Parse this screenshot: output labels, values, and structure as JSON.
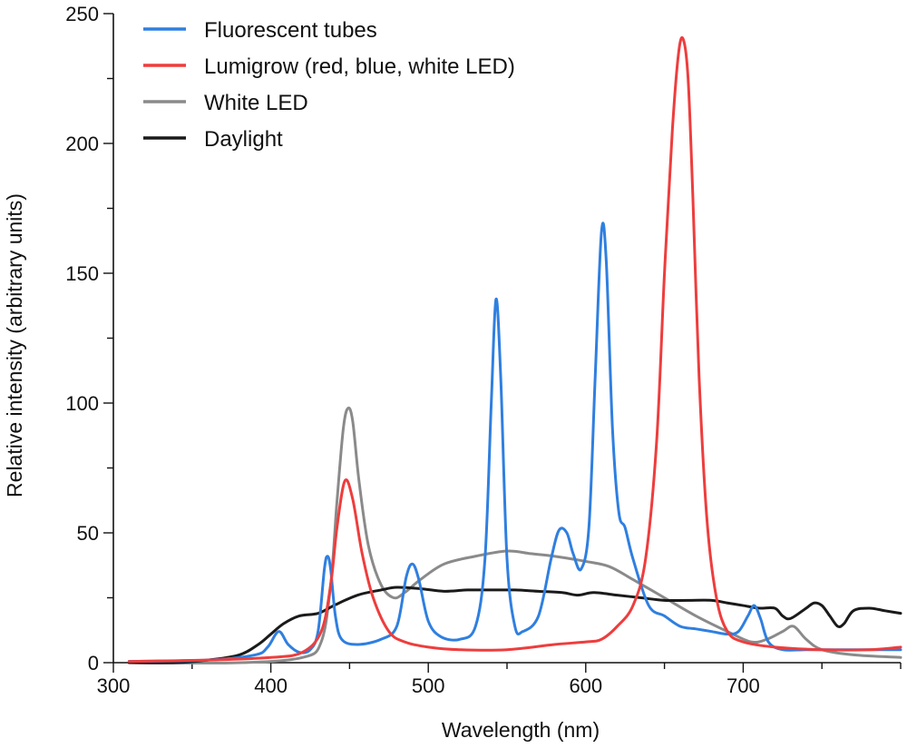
{
  "chart_data": {
    "type": "line",
    "title": "",
    "xlabel": "Wavelength (nm)",
    "ylabel": "Relative intensity (arbitrary units)",
    "xlim": [
      300,
      800
    ],
    "ylim": [
      0,
      250
    ],
    "xticks": [
      300,
      400,
      500,
      600,
      700
    ],
    "yticks": [
      0,
      50,
      100,
      150,
      200,
      250
    ],
    "grid": false,
    "legend_position": "top-left",
    "series": [
      {
        "name": "Fluorescent tubes",
        "color": "#2f7fe0",
        "points": [
          [
            310,
            0.5
          ],
          [
            360,
            1
          ],
          [
            390,
            3
          ],
          [
            398,
            6
          ],
          [
            405,
            12
          ],
          [
            411,
            7
          ],
          [
            418,
            4
          ],
          [
            425,
            5
          ],
          [
            430,
            12
          ],
          [
            434,
            36
          ],
          [
            436,
            41
          ],
          [
            438,
            36
          ],
          [
            441,
            18
          ],
          [
            445,
            9
          ],
          [
            455,
            7
          ],
          [
            470,
            9
          ],
          [
            480,
            14
          ],
          [
            486,
            33
          ],
          [
            490,
            38
          ],
          [
            494,
            32
          ],
          [
            500,
            16
          ],
          [
            508,
            10
          ],
          [
            520,
            9
          ],
          [
            530,
            14
          ],
          [
            536,
            40
          ],
          [
            540,
            100
          ],
          [
            543,
            140
          ],
          [
            546,
            110
          ],
          [
            550,
            40
          ],
          [
            555,
            14
          ],
          [
            560,
            12
          ],
          [
            570,
            18
          ],
          [
            578,
            40
          ],
          [
            583,
            51
          ],
          [
            588,
            50
          ],
          [
            592,
            42
          ],
          [
            597,
            36
          ],
          [
            602,
            52
          ],
          [
            606,
            110
          ],
          [
            610,
            166
          ],
          [
            613,
            155
          ],
          [
            617,
            90
          ],
          [
            621,
            58
          ],
          [
            625,
            52
          ],
          [
            630,
            40
          ],
          [
            640,
            22
          ],
          [
            650,
            18
          ],
          [
            660,
            14
          ],
          [
            670,
            13
          ],
          [
            680,
            12
          ],
          [
            690,
            11
          ],
          [
            697,
            12
          ],
          [
            703,
            18
          ],
          [
            707,
            22
          ],
          [
            711,
            17
          ],
          [
            716,
            8
          ],
          [
            725,
            5
          ],
          [
            740,
            5
          ],
          [
            760,
            5
          ],
          [
            780,
            5
          ],
          [
            800,
            5
          ]
        ]
      },
      {
        "name": "Lumigrow (red, blue, white LED)",
        "color": "#ee3d3d",
        "points": [
          [
            310,
            0.5
          ],
          [
            360,
            1
          ],
          [
            400,
            2
          ],
          [
            420,
            4
          ],
          [
            432,
            12
          ],
          [
            438,
            30
          ],
          [
            442,
            52
          ],
          [
            447,
            70
          ],
          [
            452,
            63
          ],
          [
            458,
            42
          ],
          [
            465,
            25
          ],
          [
            475,
            12
          ],
          [
            485,
            8
          ],
          [
            500,
            6
          ],
          [
            520,
            5
          ],
          [
            550,
            5
          ],
          [
            580,
            7
          ],
          [
            600,
            8
          ],
          [
            610,
            9
          ],
          [
            620,
            14
          ],
          [
            630,
            22
          ],
          [
            638,
            40
          ],
          [
            645,
            85
          ],
          [
            650,
            150
          ],
          [
            655,
            205
          ],
          [
            659,
            235
          ],
          [
            662,
            240
          ],
          [
            665,
            225
          ],
          [
            668,
            180
          ],
          [
            672,
            110
          ],
          [
            677,
            55
          ],
          [
            683,
            25
          ],
          [
            690,
            12
          ],
          [
            700,
            8
          ],
          [
            720,
            6
          ],
          [
            750,
            5
          ],
          [
            780,
            5
          ],
          [
            800,
            6
          ]
        ]
      },
      {
        "name": "White LED",
        "color": "#8a8a8a",
        "points": [
          [
            310,
            0
          ],
          [
            380,
            0
          ],
          [
            420,
            2
          ],
          [
            432,
            8
          ],
          [
            438,
            30
          ],
          [
            442,
            62
          ],
          [
            446,
            90
          ],
          [
            449,
            98
          ],
          [
            452,
            93
          ],
          [
            456,
            70
          ],
          [
            462,
            45
          ],
          [
            470,
            30
          ],
          [
            478,
            25
          ],
          [
            485,
            27
          ],
          [
            495,
            32
          ],
          [
            510,
            38
          ],
          [
            530,
            41
          ],
          [
            550,
            43
          ],
          [
            565,
            42
          ],
          [
            580,
            41
          ],
          [
            600,
            39
          ],
          [
            615,
            37
          ],
          [
            630,
            32
          ],
          [
            650,
            25
          ],
          [
            670,
            18
          ],
          [
            690,
            12
          ],
          [
            705,
            8
          ],
          [
            715,
            9
          ],
          [
            725,
            12
          ],
          [
            732,
            14
          ],
          [
            740,
            9
          ],
          [
            750,
            5
          ],
          [
            770,
            3
          ],
          [
            800,
            2
          ]
        ]
      },
      {
        "name": "Daylight",
        "color": "#1a1a1a",
        "points": [
          [
            310,
            0
          ],
          [
            340,
            0
          ],
          [
            360,
            1
          ],
          [
            380,
            3
          ],
          [
            392,
            7
          ],
          [
            400,
            11
          ],
          [
            408,
            15
          ],
          [
            418,
            18
          ],
          [
            430,
            19
          ],
          [
            440,
            22
          ],
          [
            455,
            26
          ],
          [
            470,
            28
          ],
          [
            480,
            29
          ],
          [
            495,
            28.5
          ],
          [
            510,
            27.5
          ],
          [
            525,
            28
          ],
          [
            540,
            28
          ],
          [
            555,
            28
          ],
          [
            570,
            27.5
          ],
          [
            585,
            27
          ],
          [
            595,
            26
          ],
          [
            605,
            27
          ],
          [
            620,
            26
          ],
          [
            635,
            25
          ],
          [
            650,
            24
          ],
          [
            665,
            24
          ],
          [
            680,
            24
          ],
          [
            690,
            23
          ],
          [
            700,
            22
          ],
          [
            710,
            21
          ],
          [
            720,
            21
          ],
          [
            725,
            18
          ],
          [
            730,
            17
          ],
          [
            740,
            21
          ],
          [
            745,
            23
          ],
          [
            750,
            22
          ],
          [
            755,
            18
          ],
          [
            760,
            14
          ],
          [
            764,
            15
          ],
          [
            770,
            20
          ],
          [
            780,
            21
          ],
          [
            790,
            20
          ],
          [
            800,
            19
          ]
        ]
      }
    ]
  }
}
